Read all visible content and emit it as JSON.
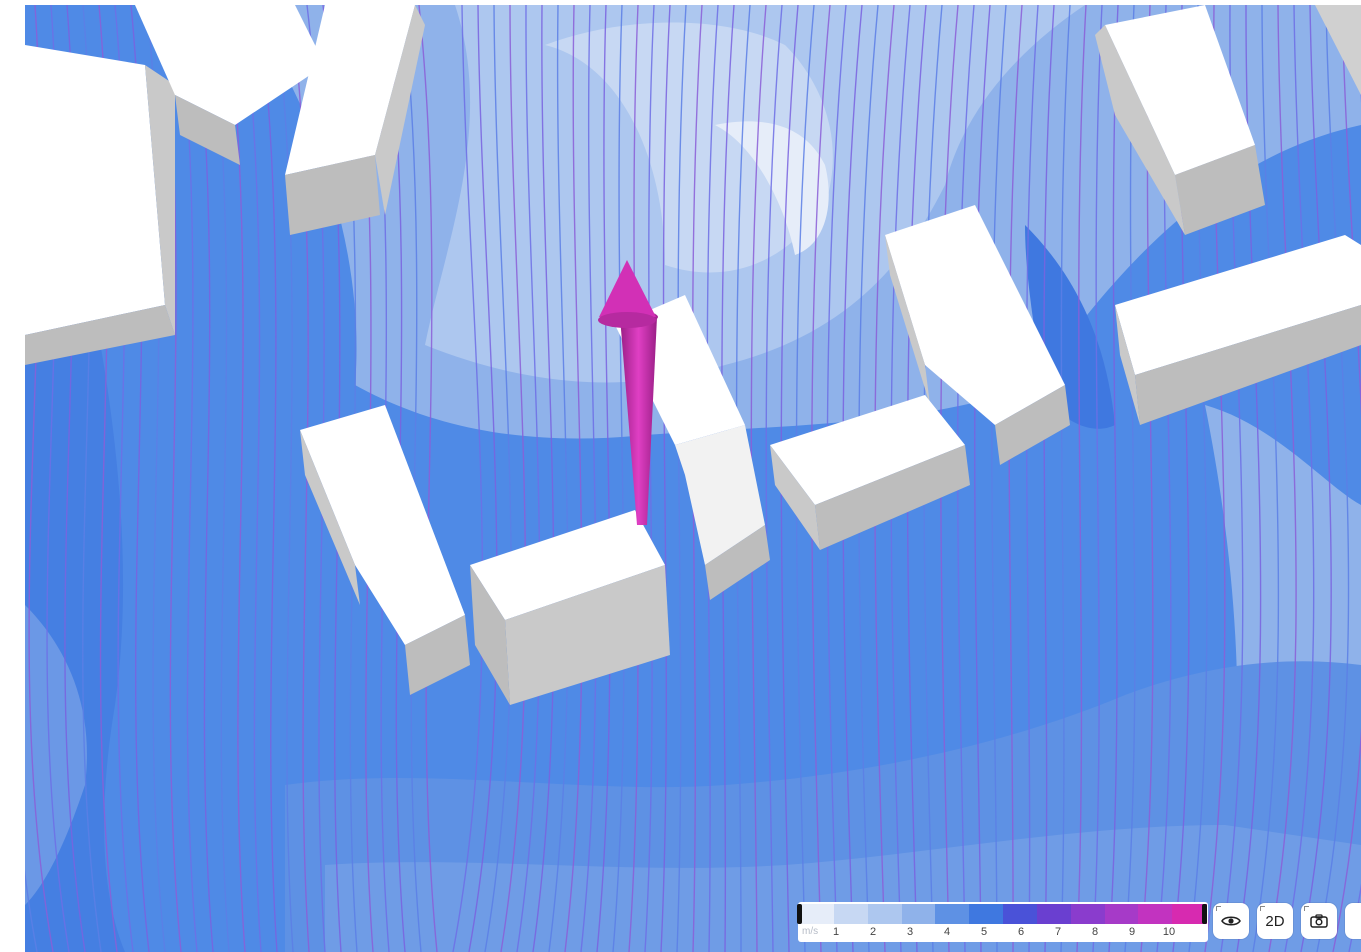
{
  "legend": {
    "unit": "m/s",
    "ticks": [
      "1",
      "2",
      "3",
      "4",
      "5",
      "6",
      "7",
      "8",
      "9",
      "10"
    ],
    "colors": [
      "#e6edf9",
      "#c7d8f3",
      "#adc7ef",
      "#8fb2ea",
      "#5e91e4",
      "#3f78e0",
      "#4a52d8",
      "#6a3fd0",
      "#8a3ccd",
      "#a63ac8",
      "#c233c0",
      "#d72ab0"
    ]
  },
  "controls": {
    "visibility_icon": "eye-icon",
    "view_mode_label": "2D",
    "screenshot_icon": "camera-icon"
  },
  "colors": {
    "arrow": "#d230b6",
    "streamline": "#6e6fe6",
    "building_top": "#ffffff",
    "building_side": "#c9c9c9"
  }
}
